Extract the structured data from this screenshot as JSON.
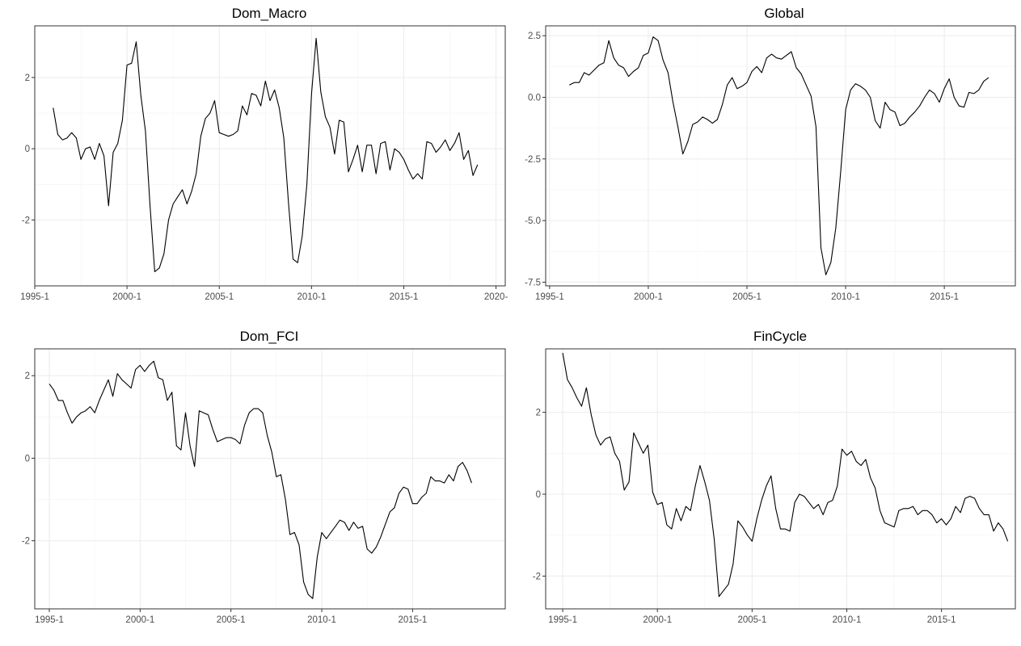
{
  "chart_data": [
    {
      "type": "line",
      "title": "Dom_Macro",
      "xlabel": "",
      "ylabel": "",
      "xlim": [
        1995.0,
        2020.5
      ],
      "ylim": [
        -3.85,
        3.45
      ],
      "x_ticks": [
        1995.0,
        2000.0,
        2005.0,
        2010.0,
        2015.0,
        2020.0
      ],
      "x_tick_labels": [
        "1995-1",
        "2000-1",
        "2005-1",
        "2010-1",
        "2015-1",
        "2020-"
      ],
      "y_ticks": [
        -2,
        0,
        2
      ],
      "y_tick_labels": [
        "-2",
        "0",
        "2"
      ],
      "grid": true,
      "series": [
        {
          "x_start": 1996.0,
          "x_step": 0.25,
          "values": [
            1.15,
            0.4,
            0.25,
            0.3,
            0.45,
            0.3,
            -0.3,
            0.0,
            0.05,
            -0.3,
            0.15,
            -0.2,
            -1.6,
            -0.1,
            0.15,
            0.8,
            2.35,
            2.4,
            3.0,
            1.5,
            0.5,
            -1.6,
            -3.45,
            -3.35,
            -2.95,
            -2.0,
            -1.55,
            -1.35,
            -1.15,
            -1.55,
            -1.2,
            -0.7,
            0.35,
            0.85,
            1.0,
            1.35,
            0.45,
            0.4,
            0.35,
            0.4,
            0.5,
            1.2,
            0.95,
            1.55,
            1.5,
            1.2,
            1.9,
            1.35,
            1.65,
            1.15,
            0.3,
            -1.5,
            -3.1,
            -3.2,
            -2.45,
            -1.0,
            1.55,
            3.1,
            1.6,
            0.9,
            0.6,
            -0.15,
            0.8,
            0.75,
            -0.65,
            -0.3,
            0.1,
            -0.65,
            0.1,
            0.1,
            -0.7,
            0.15,
            0.2,
            -0.6,
            0.0,
            -0.1,
            -0.3,
            -0.6,
            -0.85,
            -0.7,
            -0.85,
            0.2,
            0.15,
            -0.1,
            0.05,
            0.25,
            -0.05,
            0.15,
            0.45,
            -0.3,
            -0.05,
            -0.75,
            -0.45
          ]
        }
      ]
    },
    {
      "type": "line",
      "title": "Global",
      "xlabel": "",
      "ylabel": "",
      "xlim": [
        1994.8,
        2018.6
      ],
      "ylim": [
        -7.65,
        2.9
      ],
      "x_ticks": [
        1995.0,
        2000.0,
        2005.0,
        2010.0,
        2015.0
      ],
      "x_tick_labels": [
        "1995-1",
        "2000-1",
        "2005-1",
        "2010-1",
        "2015-1"
      ],
      "y_ticks": [
        -7.5,
        -5.0,
        -2.5,
        0.0,
        2.5
      ],
      "y_tick_labels": [
        "-7.5",
        "-5.0",
        "-2.5",
        "0.0",
        "2.5"
      ],
      "grid": true,
      "series": [
        {
          "x_start": 1996.0,
          "x_step": 0.25,
          "values": [
            0.5,
            0.6,
            0.6,
            1.0,
            0.9,
            1.1,
            1.3,
            1.4,
            2.3,
            1.6,
            1.3,
            1.2,
            0.85,
            1.05,
            1.2,
            1.7,
            1.8,
            2.45,
            2.3,
            1.5,
            1.0,
            -0.2,
            -1.2,
            -2.3,
            -1.8,
            -1.1,
            -1.0,
            -0.8,
            -0.9,
            -1.05,
            -0.9,
            -0.3,
            0.5,
            0.8,
            0.35,
            0.45,
            0.6,
            1.05,
            1.25,
            1.0,
            1.6,
            1.75,
            1.6,
            1.55,
            1.7,
            1.85,
            1.2,
            0.95,
            0.5,
            0.05,
            -1.2,
            -6.1,
            -7.2,
            -6.7,
            -5.3,
            -3.0,
            -0.5,
            0.3,
            0.55,
            0.45,
            0.3,
            0.0,
            -0.95,
            -1.25,
            -0.2,
            -0.5,
            -0.6,
            -1.15,
            -1.05,
            -0.8,
            -0.6,
            -0.35,
            0.0,
            0.3,
            0.15,
            -0.2,
            0.35,
            0.75,
            0.0,
            -0.35,
            -0.4,
            0.2,
            0.15,
            0.3,
            0.65,
            0.8
          ]
        }
      ]
    },
    {
      "type": "line",
      "title": "Dom_FCI",
      "xlabel": "",
      "ylabel": "",
      "xlim": [
        1994.2,
        2020.1
      ],
      "ylim": [
        -3.65,
        2.65
      ],
      "x_ticks": [
        1995.0,
        2000.0,
        2005.0,
        2010.0,
        2015.0
      ],
      "x_tick_labels": [
        "1995-1",
        "2000-1",
        "2005-1",
        "2010-1",
        "2015-1"
      ],
      "y_ticks": [
        -2,
        0,
        2
      ],
      "y_tick_labels": [
        "-2",
        "0",
        "2"
      ],
      "grid": true,
      "series": [
        {
          "x_start": 1995.0,
          "x_step": 0.25,
          "values": [
            1.8,
            1.65,
            1.4,
            1.4,
            1.1,
            0.85,
            1.0,
            1.1,
            1.15,
            1.25,
            1.1,
            1.4,
            1.65,
            1.9,
            1.5,
            2.05,
            1.9,
            1.8,
            1.7,
            2.15,
            2.25,
            2.1,
            2.25,
            2.35,
            1.95,
            1.9,
            1.4,
            1.6,
            0.3,
            0.2,
            1.1,
            0.3,
            -0.2,
            1.15,
            1.1,
            1.05,
            0.7,
            0.4,
            0.45,
            0.5,
            0.5,
            0.45,
            0.35,
            0.8,
            1.1,
            1.2,
            1.2,
            1.1,
            0.55,
            0.15,
            -0.45,
            -0.4,
            -1.0,
            -1.85,
            -1.8,
            -2.1,
            -3.0,
            -3.3,
            -3.4,
            -2.4,
            -1.8,
            -1.95,
            -1.8,
            -1.65,
            -1.5,
            -1.55,
            -1.75,
            -1.55,
            -1.7,
            -1.65,
            -2.2,
            -2.3,
            -2.15,
            -1.9,
            -1.6,
            -1.3,
            -1.2,
            -0.85,
            -0.7,
            -0.75,
            -1.1,
            -1.1,
            -0.95,
            -0.85,
            -0.45,
            -0.55,
            -0.55,
            -0.6,
            -0.4,
            -0.55,
            -0.2,
            -0.1,
            -0.3,
            -0.6
          ]
        }
      ]
    },
    {
      "type": "line",
      "title": "FinCycle",
      "xlabel": "",
      "ylabel": "",
      "xlim": [
        1994.1,
        2018.9
      ],
      "ylim": [
        -2.8,
        3.55
      ],
      "x_ticks": [
        1995.0,
        2000.0,
        2005.0,
        2010.0,
        2015.0
      ],
      "x_tick_labels": [
        "1995-1",
        "2000-1",
        "2005-1",
        "2010-1",
        "2015-1"
      ],
      "y_ticks": [
        -2,
        0,
        2
      ],
      "y_tick_labels": [
        "-2",
        "0",
        "2"
      ],
      "grid": true,
      "series": [
        {
          "x_start": 1995.0,
          "x_step": 0.25,
          "values": [
            3.45,
            2.8,
            2.6,
            2.35,
            2.15,
            2.6,
            1.95,
            1.45,
            1.2,
            1.35,
            1.4,
            1.0,
            0.8,
            0.1,
            0.3,
            1.5,
            1.25,
            1.0,
            1.2,
            0.05,
            -0.25,
            -0.2,
            -0.75,
            -0.85,
            -0.35,
            -0.65,
            -0.3,
            -0.4,
            0.2,
            0.7,
            0.3,
            -0.15,
            -1.1,
            -2.5,
            -2.35,
            -2.2,
            -1.7,
            -0.65,
            -0.8,
            -1.0,
            -1.15,
            -0.6,
            -0.15,
            0.2,
            0.45,
            -0.35,
            -0.85,
            -0.85,
            -0.9,
            -0.2,
            0.0,
            -0.05,
            -0.2,
            -0.35,
            -0.25,
            -0.5,
            -0.2,
            -0.15,
            0.2,
            1.1,
            0.95,
            1.05,
            0.8,
            0.7,
            0.85,
            0.4,
            0.15,
            -0.4,
            -0.7,
            -0.75,
            -0.8,
            -0.4,
            -0.35,
            -0.35,
            -0.3,
            -0.5,
            -0.4,
            -0.4,
            -0.5,
            -0.7,
            -0.6,
            -0.75,
            -0.6,
            -0.3,
            -0.45,
            -0.1,
            -0.05,
            -0.1,
            -0.35,
            -0.5,
            -0.5,
            -0.9,
            -0.7,
            -0.85,
            -1.15
          ]
        }
      ]
    }
  ]
}
